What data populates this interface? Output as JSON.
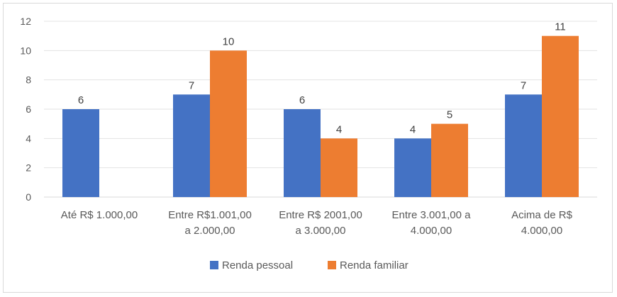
{
  "chart_data": {
    "type": "bar",
    "categories": [
      [
        "Até R$ 1.000,00"
      ],
      [
        "Entre R$1.001,00",
        "a 2.000,00"
      ],
      [
        "Entre R$ 2001,00",
        "a 3.000,00"
      ],
      [
        "Entre 3.001,00 a",
        "4.000,00"
      ],
      [
        "Acima de R$",
        "4.000,00"
      ]
    ],
    "series": [
      {
        "name": "Renda pessoal",
        "color": "#4472c4",
        "values": [
          6,
          7,
          6,
          4,
          7
        ]
      },
      {
        "name": "Renda familiar",
        "color": "#ed7d31",
        "values": [
          null,
          10,
          4,
          5,
          11
        ]
      }
    ],
    "ylim": [
      0,
      12
    ],
    "yticks": [
      0,
      2,
      4,
      6,
      8,
      10,
      12
    ],
    "grid": true,
    "legend": "bottom",
    "title": "",
    "xlabel": "",
    "ylabel": ""
  }
}
